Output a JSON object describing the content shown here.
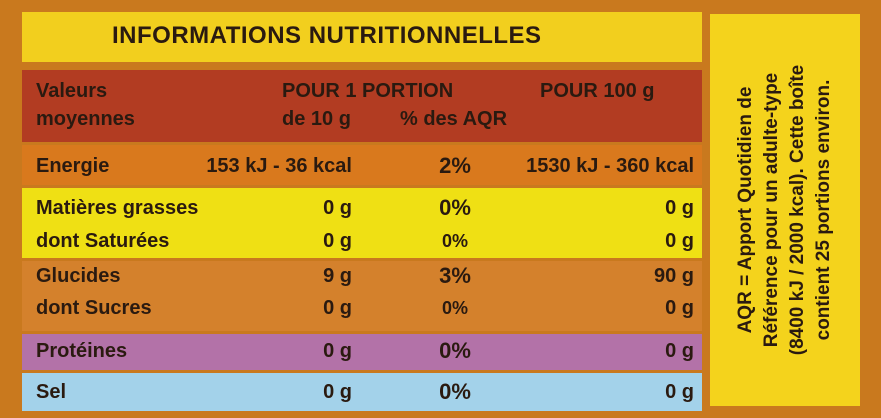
{
  "header": {
    "title": "INFORMATIONS NUTRITIONNELLES"
  },
  "table": {
    "head": {
      "label": [
        "Valeurs",
        "moyennes"
      ],
      "portion": "POUR 1 PORTION",
      "portion_size": "de 10 g",
      "aqr": "% des AQR",
      "per100": "POUR 100 g"
    },
    "rows": [
      [
        "Energie",
        "153 kJ - 36 kcal",
        "2%",
        "1530 kJ - 360 kcal"
      ],
      [
        "Matières grasses",
        "0 g",
        "0%",
        "0 g"
      ],
      [
        "dont Saturées",
        "0 g",
        "0%",
        "0 g"
      ],
      [
        "Glucides",
        "9 g",
        "3%",
        "90 g"
      ],
      [
        "dont Sucres",
        "0 g",
        "0%",
        "0 g"
      ],
      [
        "Protéines",
        "0 g",
        "0%",
        "0 g"
      ],
      [
        "Sel",
        "0 g",
        "0%",
        "0 g"
      ]
    ]
  },
  "note": {
    "lines": [
      "AQR = Apport Quotidien de",
      "Référence pour un adulte-type",
      "(8400 kJ / 2000 kcal). Cette boîte",
      "contient 25 portions environ."
    ]
  }
}
